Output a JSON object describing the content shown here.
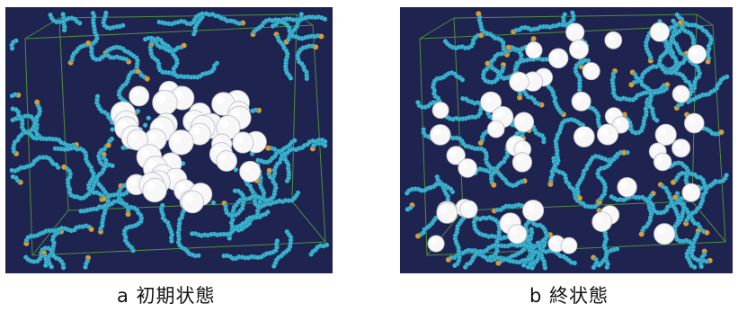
{
  "panels": [
    {
      "id": "a",
      "caption": "a 初期状態",
      "state": "initial",
      "particle_arrangement": "clustered-center"
    },
    {
      "id": "b",
      "caption": "b 終状態",
      "state": "final",
      "particle_arrangement": "dispersed"
    }
  ],
  "colors": {
    "background": "#1f2350",
    "box_edges": "#4f8f3c",
    "chain_beads": "#3cb5d2",
    "chain_ends": "#e39a2b",
    "large_particles": "#f7f7f7"
  }
}
